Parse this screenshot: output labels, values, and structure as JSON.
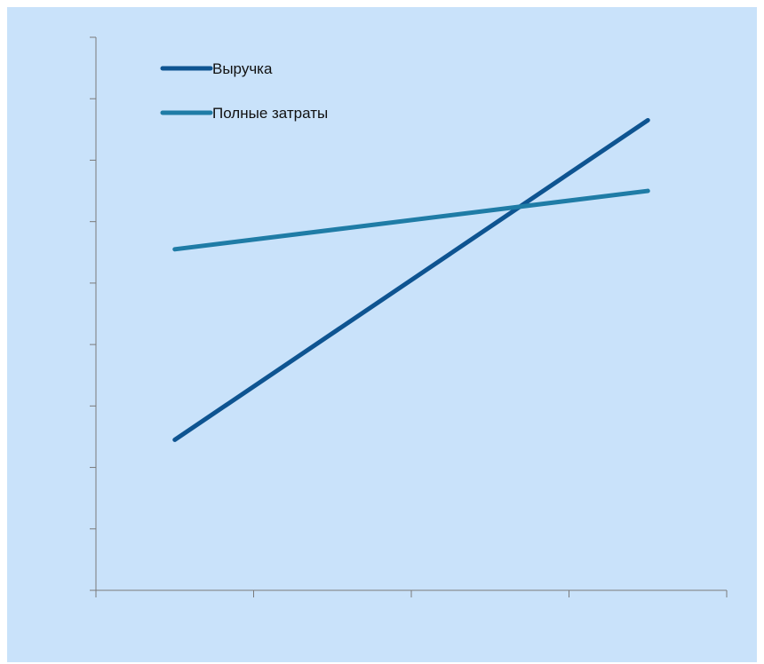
{
  "chart_data": {
    "type": "line",
    "title": "",
    "xlabel": "",
    "ylabel": "",
    "x": [
      0,
      3
    ],
    "xlim": [
      -0.5,
      3.5
    ],
    "ylim": [
      0,
      9
    ],
    "y_ticks": [
      0,
      1,
      2,
      3,
      4,
      5,
      6,
      7,
      8,
      9
    ],
    "x_ticks": [
      -0.5,
      0.5,
      1.5,
      2.5,
      3.5
    ],
    "grid": false,
    "legend_position": "top-left",
    "series": [
      {
        "name": "Выручка",
        "values": [
          2.45,
          7.65
        ],
        "color": "#0e5491"
      },
      {
        "name": "Полные затраты",
        "values": [
          5.55,
          6.5
        ],
        "color": "#1f7ca6"
      }
    ]
  },
  "colors": {
    "background": "#c9e2fa",
    "axis": "#7a7a7a"
  }
}
